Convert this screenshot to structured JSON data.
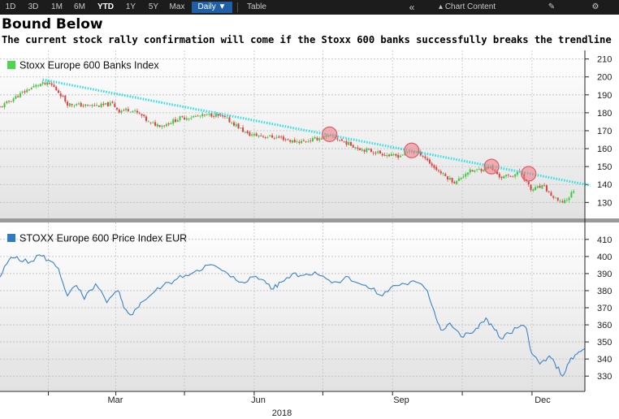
{
  "toolbar": {
    "ranges": [
      "1D",
      "3D",
      "1M",
      "6M",
      "YTD",
      "1Y",
      "5Y",
      "Max"
    ],
    "active_range": "YTD",
    "frequency": "Daily",
    "table_label": "Table",
    "collapse_icon": "double-chevron-left-icon",
    "chart_content_label": "Chart Content",
    "edit_icon": "edit-icon",
    "settings_icon": "gear-icon"
  },
  "header": {
    "title": "Bound Below",
    "subtitle": "The current stock rally confirmation will come if the Stoxx 600 banks successfully breaks the trendline"
  },
  "chart_data": [
    {
      "type": "candlestick",
      "title": "Stoxx Europe 600 Banks Index",
      "legend": "Stoxx Europe 600 Banks Index",
      "legend_color": "#4cd64c",
      "up_color": "#3cc83c",
      "down_color": "#e04040",
      "ylim": [
        122,
        213
      ],
      "yticks": [
        130,
        140,
        150,
        160,
        170,
        180,
        190,
        200,
        210
      ],
      "x_range": [
        0,
        52
      ],
      "close_points": [
        [
          0,
          183
        ],
        [
          1.2,
          188
        ],
        [
          2.5,
          193
        ],
        [
          3.5,
          196
        ],
        [
          4.5,
          196
        ],
        [
          5.3,
          191
        ],
        [
          6,
          185
        ],
        [
          7.5,
          184
        ],
        [
          9,
          184
        ],
        [
          10,
          185
        ],
        [
          10.6,
          181
        ],
        [
          11.5,
          182
        ],
        [
          12.5,
          179
        ],
        [
          13.3,
          174
        ],
        [
          14.5,
          173
        ],
        [
          16,
          177
        ],
        [
          17.5,
          178
        ],
        [
          19,
          179
        ],
        [
          20,
          177
        ],
        [
          21,
          173
        ],
        [
          22,
          168
        ],
        [
          23.5,
          167
        ],
        [
          25,
          166
        ],
        [
          26,
          164
        ],
        [
          27,
          164
        ],
        [
          28.5,
          166
        ],
        [
          29.5,
          167
        ],
        [
          30.5,
          164
        ],
        [
          32,
          160
        ],
        [
          33.5,
          158
        ],
        [
          34.7,
          156
        ],
        [
          35.5,
          156
        ],
        [
          36.5,
          159
        ],
        [
          37.5,
          157
        ],
        [
          38.5,
          150
        ],
        [
          39.5,
          145
        ],
        [
          40.5,
          141
        ],
        [
          41.5,
          147
        ],
        [
          42.5,
          148
        ],
        [
          43.5,
          150
        ],
        [
          44.5,
          144
        ],
        [
          45.5,
          145
        ],
        [
          46.3,
          147
        ],
        [
          47.2,
          137
        ],
        [
          48.3,
          139
        ],
        [
          49.3,
          132
        ],
        [
          49.8,
          130
        ],
        [
          50.5,
          132
        ],
        [
          51,
          137
        ]
      ],
      "trendline": {
        "from": [
          3.8,
          198.5
        ],
        "to": [
          52.5,
          139.5
        ],
        "color": "#28e0e6"
      },
      "touch_points": [
        [
          29.3,
          168
        ],
        [
          36.6,
          159
        ],
        [
          43.7,
          150
        ],
        [
          47,
          146
        ]
      ]
    },
    {
      "type": "line",
      "title": "STOXX Europe 600 Price Index EUR",
      "legend": "STOXX Europe 600 Price Index EUR",
      "legend_color": "#2e7bc6",
      "line_color": "#3a83c8",
      "ylim": [
        322,
        418
      ],
      "yticks": [
        330,
        340,
        350,
        360,
        370,
        380,
        390,
        400,
        410
      ],
      "x_range": [
        0,
        52
      ],
      "points": [
        [
          0,
          388
        ],
        [
          0.8,
          398
        ],
        [
          1.5,
          400
        ],
        [
          2.5,
          396
        ],
        [
          3.5,
          401
        ],
        [
          4.3,
          398
        ],
        [
          5.2,
          393
        ],
        [
          6,
          377
        ],
        [
          6.8,
          383
        ],
        [
          7.5,
          375
        ],
        [
          8.5,
          384
        ],
        [
          9.5,
          373
        ],
        [
          10.5,
          380
        ],
        [
          11,
          370
        ],
        [
          11.8,
          366
        ],
        [
          12.5,
          373
        ],
        [
          13.5,
          378
        ],
        [
          14.5,
          383
        ],
        [
          15.5,
          386
        ],
        [
          16.5,
          389
        ],
        [
          17.5,
          392
        ],
        [
          18.5,
          395
        ],
        [
          19.5,
          393
        ],
        [
          20.5,
          388
        ],
        [
          21.5,
          385
        ],
        [
          22.5,
          388
        ],
        [
          23.5,
          386
        ],
        [
          24.3,
          381
        ],
        [
          25,
          385
        ],
        [
          26,
          390
        ],
        [
          27,
          389
        ],
        [
          28,
          391
        ],
        [
          29,
          387
        ],
        [
          30,
          385
        ],
        [
          31,
          388
        ],
        [
          32,
          384
        ],
        [
          33,
          381
        ],
        [
          34,
          377
        ],
        [
          35,
          383
        ],
        [
          36,
          384
        ],
        [
          37,
          385
        ],
        [
          38,
          380
        ],
        [
          38.6,
          368
        ],
        [
          39.2,
          357
        ],
        [
          40,
          361
        ],
        [
          41,
          353
        ],
        [
          41.8,
          355
        ],
        [
          42.5,
          358
        ],
        [
          43.2,
          364
        ],
        [
          43.8,
          359
        ],
        [
          44.5,
          352
        ],
        [
          45.3,
          355
        ],
        [
          46.2,
          359
        ],
        [
          46.8,
          358
        ],
        [
          47.3,
          343
        ],
        [
          48,
          337
        ],
        [
          48.7,
          341
        ],
        [
          49.3,
          338
        ],
        [
          50,
          330
        ],
        [
          50.6,
          338
        ],
        [
          51.3,
          343
        ],
        [
          52,
          346
        ]
      ]
    }
  ],
  "x_axis": {
    "tick_labels": [
      "Mar",
      "Jun",
      "Sep",
      "Dec"
    ],
    "tick_positions": [
      10,
      22.7,
      35.7,
      48.5
    ],
    "month_ticks": [
      4.3,
      10.3,
      16.4,
      22.6,
      28.7,
      34.9,
      41.1,
      47.3
    ],
    "year_label": "2018"
  }
}
